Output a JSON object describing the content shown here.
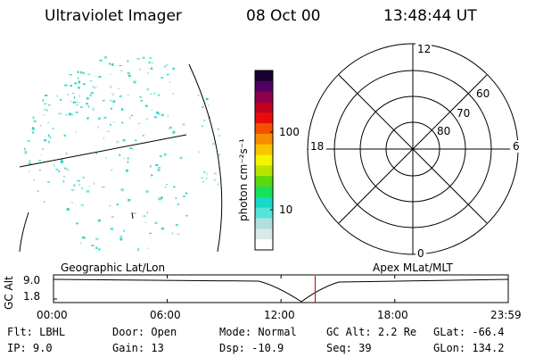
{
  "header": {
    "title": "Ultraviolet Imager",
    "date": "08 Oct 00",
    "time": "13:48:44 UT"
  },
  "colorbar": {
    "unit_label": "photon cm⁻²s⁻¹",
    "ticks": [
      {
        "label": "100",
        "value": 100
      },
      {
        "label": "10",
        "value": 10
      }
    ],
    "colors": [
      "#ffffff",
      "#d9e8e8",
      "#b4dede",
      "#54e4dc",
      "#18d8c8",
      "#18e058",
      "#5cd810",
      "#b8e400",
      "#f4f400",
      "#f8c400",
      "#f88c00",
      "#f45000",
      "#e80c0c",
      "#c00020",
      "#8c0050",
      "#500060",
      "#180030"
    ]
  },
  "polar_plot": {
    "mlt_labels": {
      "top": "12",
      "left": "18",
      "right": "6",
      "bottom": "0"
    },
    "lat_labels": [
      "60",
      "70",
      "80"
    ]
  },
  "timeline": {
    "left_title": "Geographic Lat/Lon",
    "right_title": "Apex MLat/MLT",
    "axis_label": "GC Alt",
    "y_max": "9.0",
    "y_min": "1.8",
    "time_ticks": [
      "00:00",
      "06:00",
      "12:00",
      "18:00",
      "23:59"
    ],
    "marker_time": "13:48",
    "marker_color": "#d00000"
  },
  "footer": {
    "rows": [
      [
        {
          "label": "Flt:",
          "value": "LBHL"
        },
        {
          "label": "Door:",
          "value": "Open"
        },
        {
          "label": "Mode:",
          "value": "Normal"
        },
        {
          "label": "GC Alt:",
          "value": "2.2 Re"
        },
        {
          "label": "GLat:",
          "value": "-66.4"
        }
      ],
      [
        {
          "label": "IP:",
          "value": "9.0"
        },
        {
          "label": "Gain:",
          "value": "13"
        },
        {
          "label": "Dsp:",
          "value": "-10.9"
        },
        {
          "label": "Seq:",
          "value": "39"
        },
        {
          "label": "GLon:",
          "value": "134.2"
        }
      ]
    ]
  }
}
